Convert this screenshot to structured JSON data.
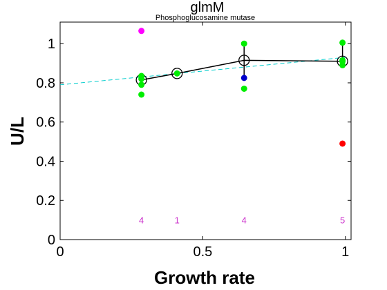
{
  "chart_data": {
    "type": "scatter",
    "title": "glmM",
    "subtitle": "Phosphoglucosamine mutase",
    "xlabel": "Growth rate",
    "ylabel": "U/L",
    "xlim": [
      0,
      1.02
    ],
    "ylim": [
      0,
      1.11
    ],
    "x_ticks": [
      0,
      0.5,
      1
    ],
    "x_tick_labels": [
      "0",
      "0.5",
      "1"
    ],
    "y_ticks": [
      0,
      0.2,
      0.4,
      0.6,
      0.8,
      1
    ],
    "y_tick_labels": [
      "0",
      "0.2",
      "0.4",
      "0.6",
      "0.8",
      "1"
    ],
    "grid": false,
    "points": [
      {
        "x": 0.285,
        "y": 1.065,
        "color": "#ff00ff"
      },
      {
        "x": 0.285,
        "y": 0.835,
        "color": "#00ee00"
      },
      {
        "x": 0.285,
        "y": 0.82,
        "color": "#00ee00"
      },
      {
        "x": 0.285,
        "y": 0.79,
        "color": "#00ee00"
      },
      {
        "x": 0.285,
        "y": 0.74,
        "color": "#00ee00"
      },
      {
        "x": 0.41,
        "y": 0.848,
        "color": "#00ee00"
      },
      {
        "x": 0.645,
        "y": 1.0,
        "color": "#00ee00"
      },
      {
        "x": 0.645,
        "y": 0.77,
        "color": "#00ee00"
      },
      {
        "x": 0.645,
        "y": 0.825,
        "color": "#0000cc"
      },
      {
        "x": 0.99,
        "y": 1.005,
        "color": "#00ee00"
      },
      {
        "x": 0.99,
        "y": 0.915,
        "color": "#00ee00"
      },
      {
        "x": 0.99,
        "y": 0.91,
        "color": "#00ee00"
      },
      {
        "x": 0.99,
        "y": 0.89,
        "color": "#00ee00"
      },
      {
        "x": 0.99,
        "y": 0.49,
        "color": "#ff0000"
      }
    ],
    "mean_series": {
      "x": [
        0.285,
        0.41,
        0.645,
        0.99
      ],
      "y": [
        0.815,
        0.848,
        0.915,
        0.91
      ],
      "err_low": [
        0.795,
        0.84,
        0.83,
        0.895
      ],
      "err_high": [
        0.835,
        0.855,
        1.0,
        1.0
      ],
      "color": "#000000"
    },
    "fit_line": {
      "x": [
        0,
        1
      ],
      "y": [
        0.79,
        0.93
      ],
      "color": "#00cccc",
      "style": "dashed"
    },
    "counts": [
      {
        "x": 0.285,
        "label": "4"
      },
      {
        "x": 0.41,
        "label": "1"
      },
      {
        "x": 0.645,
        "label": "4"
      },
      {
        "x": 0.99,
        "label": "5"
      }
    ],
    "count_y": 0.1
  }
}
